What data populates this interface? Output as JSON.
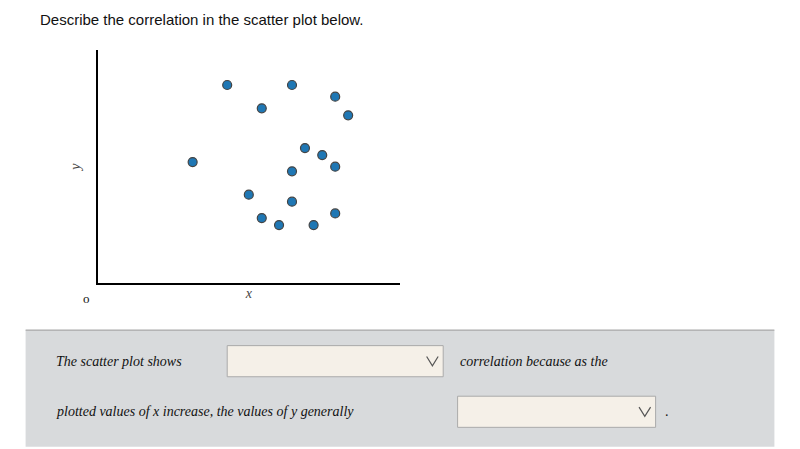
{
  "chart_data": {
    "type": "scatter",
    "title": "Describe the correlation in the scatter plot below.",
    "x": [
      3.0,
      4.5,
      3.8,
      5.5,
      4.8,
      5.8,
      2.2,
      4.5,
      5.2,
      5.5,
      3.5,
      4.5,
      3.8,
      4.2,
      5.0,
      5.5
    ],
    "values": [
      8.5,
      8.5,
      7.5,
      8.0,
      5.8,
      7.2,
      5.2,
      4.8,
      5.5,
      5.0,
      3.8,
      3.5,
      2.8,
      2.5,
      2.5,
      3.0
    ],
    "x_label": "x",
    "y_label": "y",
    "xlim": [
      0,
      7
    ],
    "ylim": [
      0,
      10
    ],
    "tick_labels": false,
    "grid": false,
    "annotations": [
      "o",
      "The scatter plot shows",
      "correlation because as the",
      "plotted values of x increase, the values of y generally",
      "."
    ]
  }
}
